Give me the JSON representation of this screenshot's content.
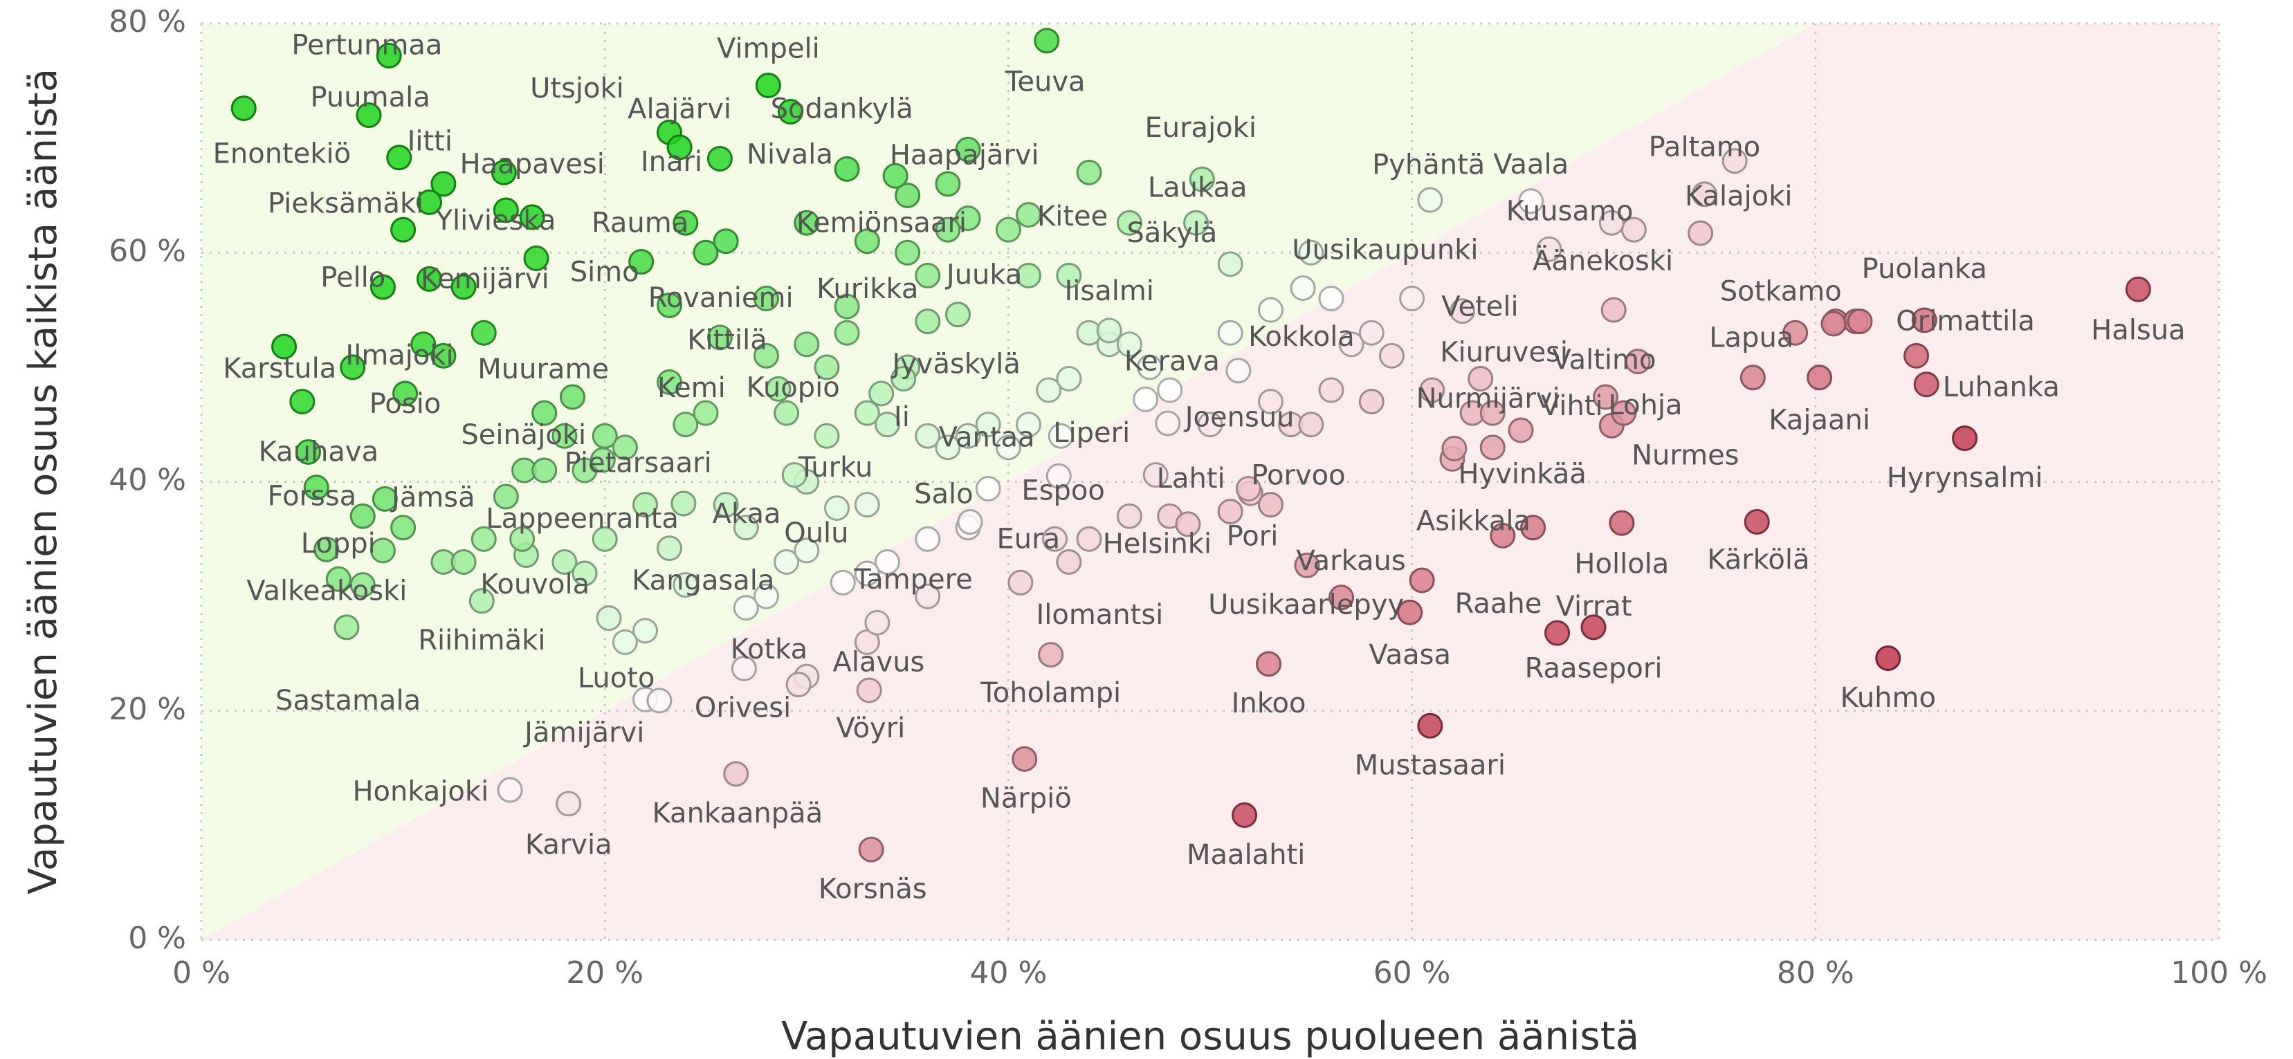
{
  "chart_data": {
    "type": "scatter",
    "xlabel": "Vapautuvien äänien osuus puolueen äänistä",
    "ylabel": "Vapautuvien äänien osuus kaikista äänistä",
    "xlim": [
      0,
      100
    ],
    "ylim": [
      0,
      80
    ],
    "xticks": [
      {
        "value": 0,
        "label": "0 %"
      },
      {
        "value": 20,
        "label": "20 %"
      },
      {
        "value": 40,
        "label": "40 %"
      },
      {
        "value": 60,
        "label": "60 %"
      },
      {
        "value": 80,
        "label": "80 %"
      },
      {
        "value": 100,
        "label": "100 %"
      }
    ],
    "yticks": [
      {
        "value": 0,
        "label": "0 %"
      },
      {
        "value": 20,
        "label": "20 %"
      },
      {
        "value": 40,
        "label": "40 %"
      },
      {
        "value": 60,
        "label": "60 %"
      },
      {
        "value": 80,
        "label": "80 %"
      }
    ],
    "grid": true,
    "colors": {
      "above": "#1ed41e",
      "below": "#c23b4e",
      "neutral": "#ffffff"
    },
    "background": {
      "above": "#f3fbe4",
      "below": "#fbeced"
    },
    "series": [
      {
        "labels": [
          "Pertunmaa",
          "Puumala",
          "Enontekiö",
          "Iitti",
          "Haapavesi",
          "Pieksämäki",
          "Ylivieska",
          "Pello",
          "Kemijärvi",
          "Karstula",
          "Ilmajoki",
          "Posio",
          "Kauhava",
          "Forssa",
          "Jämsä",
          "Loppi",
          "Valkeakoski",
          "Sastamala",
          "Riihimäki",
          "Kouvola",
          "Seinäjoki",
          "Muurame",
          "Pietarsaari",
          "Lappeenranta",
          "Utsjoki",
          "Alajärvi",
          "Inari",
          "Vimpeli",
          "Sodankylä",
          "Nivala",
          "Rauma",
          "Simo",
          "Rovaniemi",
          "Kittilä",
          "Kemi",
          "Kuopio",
          "Akaa",
          "Kangasala",
          "Turku",
          "Oulu",
          "Luoto",
          "Jämijärvi",
          "Kotka",
          "Orivesi",
          "Alavus",
          "Kankaanpää",
          "Karvia",
          "Honkajoki",
          "Korsnäs",
          "Vöyri",
          "Tampere",
          "Salo",
          "Eura",
          "Ii",
          "Jyväskylä",
          "Vantaa",
          "Kurikka",
          "Kemiönsaari",
          "Haapajärvi",
          "Juuka",
          "Teuva",
          "Kitee",
          "Eurajoki",
          "Laukaa",
          "Säkylä",
          "Iisalmi",
          "Kerava",
          "Liperi",
          "Espoo",
          "Lahti",
          "Helsinki",
          "Joensuu",
          "Kokkola",
          "Uusikaupunki",
          "Porvoo",
          "Pori",
          "Varkaus",
          "Uusikaarlepyy",
          "Ilomantsi",
          "Toholampi",
          "Närpiö",
          "Maalahti",
          "Inkoo",
          "Mustasaari",
          "Vaasa",
          "Raahe",
          "Asikkala",
          "Virrat",
          "Raasepori",
          "Hollola",
          "Hyvinkää",
          "Nurmijärvi",
          "Kiuruvesi",
          "Veteli",
          "Pyhäntä",
          "Vaala",
          "Kuusamo",
          "Äänekoski",
          "Paltamo",
          "Kalajoki",
          "Valtimo",
          "Vihti",
          "Lohja",
          "Nurmes",
          "Sotkamo",
          "Lapua",
          "Kajaani",
          "Puolanka",
          "Orimattila",
          "Halsua",
          "Luhanka",
          "Hyrynsalmi",
          "Kärkölä",
          "Kuhmo"
        ],
        "x": [
          9.3,
          8.3,
          2.1,
          9.8,
          16.4,
          11.3,
          15.1,
          11.3,
          16.6,
          4.1,
          7.5,
          10.1,
          5.3,
          5.7,
          9.1,
          6.2,
          6.8,
          7.2,
          13.9,
          16.1,
          15.1,
          18.4,
          19.9,
          15.9,
          23.2,
          23.7,
          25.7,
          28.1,
          29.2,
          32,
          24,
          21.8,
          23.2,
          25.7,
          23.2,
          28.6,
          23.9,
          23.2,
          29.4,
          31.5,
          20.2,
          22.7,
          26.9,
          29.6,
          33.5,
          26.5,
          18.2,
          15.3,
          33.2,
          33.1,
          31.8,
          38.1,
          42.3,
          33.7,
          34.8,
          39,
          32,
          30,
          34.4,
          37.5,
          41.9,
          41,
          49.6,
          49.3,
          46,
          45,
          46.8,
          42.6,
          42.5,
          48.9,
          47.3,
          47.9,
          51.4,
          54.6,
          51.9,
          51,
          54.8,
          56.5,
          40.6,
          42.1,
          40.8,
          51.7,
          52.9,
          60.9,
          59.9,
          60.5,
          64.5,
          67.2,
          69,
          70.4,
          65.4,
          62.1,
          63.4,
          62.5,
          60.9,
          65.9,
          66.8,
          69.9,
          74.5,
          74.3,
          71.2,
          69.6,
          69.9,
          70.5,
          80.9,
          76.9,
          80.2,
          85.4,
          82.2,
          96,
          85.5,
          87.4,
          77.1,
          83.6
        ],
        "values": [
          77.2,
          72,
          72.6,
          68.3,
          63.1,
          64.4,
          63.7,
          57.7,
          59.5,
          51.8,
          50,
          47.7,
          42.6,
          39.5,
          38.5,
          34.1,
          31.5,
          27.3,
          29.6,
          33.6,
          38.7,
          47.4,
          41.9,
          35,
          70.5,
          69.2,
          68.2,
          74.6,
          72.3,
          67.3,
          62.6,
          59.2,
          55.4,
          52.6,
          48.7,
          48.1,
          38.1,
          34.2,
          40.6,
          37.7,
          28.1,
          20.9,
          23.7,
          22.3,
          27.7,
          14.5,
          11.9,
          13.1,
          7.9,
          21.8,
          31.2,
          36.5,
          35,
          47.7,
          49,
          39.4,
          55.3,
          62.6,
          66.7,
          54.6,
          78.5,
          63.3,
          66.4,
          62.6,
          62.6,
          53.2,
          47.2,
          44,
          40.5,
          36.3,
          40.6,
          45.1,
          49.7,
          56.9,
          39.4,
          37.4,
          32.7,
          29.9,
          31.2,
          24.9,
          15.8,
          10.9,
          24.1,
          18.7,
          28.6,
          31.4,
          35.3,
          26.8,
          27.3,
          36.4,
          44.5,
          42.9,
          49,
          54.9,
          64.6,
          64.5,
          60.3,
          62.6,
          65.1,
          61.7,
          50.5,
          47.4,
          44.9,
          46,
          53.8,
          49.1,
          49.1,
          54.1,
          54,
          56.8,
          48.5,
          43.8,
          36.5,
          24.6
        ]
      },
      {
        "x": [
          10,
          12,
          15,
          13,
          14,
          12,
          11,
          9,
          5,
          8,
          9,
          10,
          8,
          12,
          13,
          14,
          17,
          18,
          16,
          17,
          19,
          20,
          21,
          22,
          20,
          18,
          19,
          24,
          25,
          25,
          26,
          28,
          28,
          30,
          31,
          32,
          29,
          30,
          31,
          33,
          34,
          33,
          35,
          36,
          37,
          38,
          37,
          38,
          35,
          40,
          41,
          44,
          43,
          44,
          45,
          42,
          41,
          43,
          46,
          48,
          47,
          36,
          35,
          36,
          37,
          38,
          39,
          40,
          22,
          21,
          24,
          27,
          28,
          29,
          30,
          27,
          26,
          33,
          34,
          33,
          36,
          38,
          30,
          22,
          33,
          36,
          44,
          43,
          46,
          48,
          50,
          51,
          51,
          53,
          55,
          56,
          57,
          58,
          60,
          59,
          56,
          58,
          53,
          54,
          52,
          53,
          55,
          61,
          63,
          62,
          64,
          64,
          66,
          70,
          71,
          76,
          79,
          81,
          82,
          85
        ],
        "values": [
          62,
          66,
          67,
          57,
          53,
          51,
          52,
          57,
          47,
          37,
          34,
          36,
          31,
          33,
          33,
          35,
          46,
          44,
          41,
          41,
          41,
          44,
          43,
          38,
          35,
          33,
          32,
          45,
          46,
          60,
          61,
          56,
          51,
          52,
          50,
          53,
          46,
          40,
          44,
          46,
          45,
          61,
          60,
          58,
          62,
          63,
          66,
          69,
          65,
          62,
          58,
          67,
          58,
          53,
          52,
          48,
          45,
          49,
          52,
          48,
          50,
          54,
          50,
          44,
          43,
          44,
          45,
          43,
          27,
          26,
          31,
          29,
          30,
          33,
          34,
          36,
          38,
          38,
          33,
          32,
          35,
          36,
          23,
          21,
          26,
          30,
          35,
          33,
          37,
          37,
          45,
          53,
          59,
          55,
          60,
          56,
          52,
          53,
          56,
          51,
          48,
          47,
          47,
          45,
          39,
          38,
          45,
          48,
          46,
          42,
          46,
          43,
          36,
          55,
          62,
          68,
          53,
          54,
          54,
          51
        ]
      }
    ]
  }
}
